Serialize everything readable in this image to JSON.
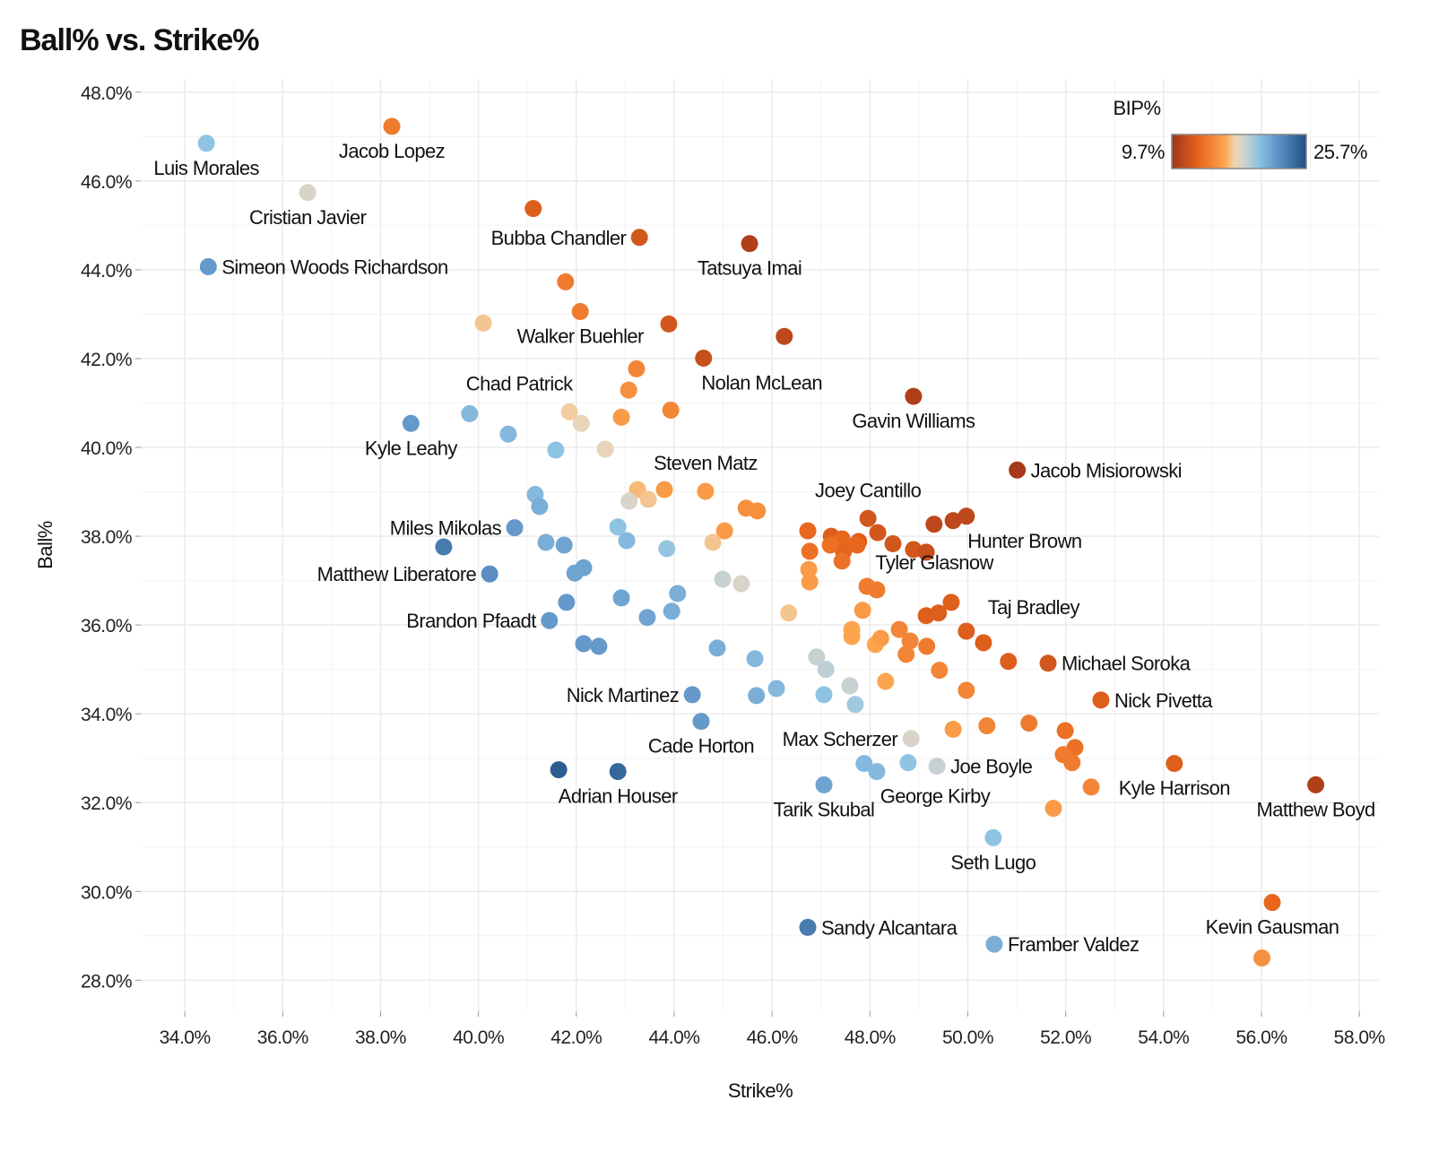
{
  "chart_data": {
    "type": "scatter",
    "title": "Ball% vs. Strike%",
    "xlabel": "Strike%",
    "ylabel": "Ball%",
    "xlim": [
      33.1,
      58.4
    ],
    "ylim": [
      27.3,
      48.3
    ],
    "xticks": [
      34,
      36,
      38,
      40,
      42,
      44,
      46,
      48,
      50,
      52,
      54,
      56,
      58
    ],
    "yticks": [
      28,
      30,
      32,
      34,
      36,
      38,
      40,
      42,
      44,
      46,
      48
    ],
    "xtick_labels": [
      "34.0%",
      "36.0%",
      "38.0%",
      "40.0%",
      "42.0%",
      "44.0%",
      "46.0%",
      "48.0%",
      "50.0%",
      "52.0%",
      "54.0%",
      "56.0%",
      "58.0%"
    ],
    "ytick_labels": [
      "28.0%",
      "30.0%",
      "32.0%",
      "34.0%",
      "36.0%",
      "38.0%",
      "40.0%",
      "42.0%",
      "44.0%",
      "46.0%",
      "48.0%"
    ],
    "grid": true,
    "legend": {
      "title": "BIP%",
      "min_label": "9.7%",
      "max_label": "25.7%",
      "min": 9.7,
      "max": 25.7,
      "placement": "top-right"
    },
    "color_scale": [
      {
        "v": 9.7,
        "c": "#9e3419"
      },
      {
        "v": 13.0,
        "c": "#e9661d"
      },
      {
        "v": 16.0,
        "c": "#fca54f"
      },
      {
        "v": 17.2,
        "c": "#f0d5b0"
      },
      {
        "v": 18.3,
        "c": "#cfd3d0"
      },
      {
        "v": 20.0,
        "c": "#8ec3e3"
      },
      {
        "v": 22.3,
        "c": "#5f93c6"
      },
      {
        "v": 25.7,
        "c": "#1f4f82"
      }
    ],
    "points": [
      {
        "x": 34.44,
        "y": 46.85,
        "bip": 20,
        "label": "Luis Morales",
        "pos": "below"
      },
      {
        "x": 38.23,
        "y": 47.23,
        "bip": 14,
        "label": "Jacob Lopez",
        "pos": "below"
      },
      {
        "x": 36.51,
        "y": 45.74,
        "bip": 18,
        "label": "Cristian Javier",
        "pos": "below"
      },
      {
        "x": 41.12,
        "y": 45.38,
        "bip": 12.5
      },
      {
        "x": 43.29,
        "y": 44.73,
        "bip": 12,
        "label": "Bubba Chandler",
        "pos": "left"
      },
      {
        "x": 45.54,
        "y": 44.59,
        "bip": 10.5,
        "label": "Tatsuya Imai",
        "pos": "below"
      },
      {
        "x": 34.48,
        "y": 44.07,
        "bip": 22,
        "label": "Simeon Woods Richardson",
        "pos": "right"
      },
      {
        "x": 41.78,
        "y": 43.73,
        "bip": 14
      },
      {
        "x": 42.08,
        "y": 43.06,
        "bip": 14,
        "label": "Walker Buehler",
        "pos": "below"
      },
      {
        "x": 40.1,
        "y": 42.8,
        "bip": 16.8
      },
      {
        "x": 43.89,
        "y": 42.78,
        "bip": 12
      },
      {
        "x": 46.25,
        "y": 42.5,
        "bip": 11
      },
      {
        "x": 44.6,
        "y": 42.01,
        "bip": 11.5,
        "label": "Nolan McLean",
        "pos": "belowright"
      },
      {
        "x": 43.23,
        "y": 41.77,
        "bip": 14.5
      },
      {
        "x": 43.07,
        "y": 41.29,
        "bip": 15
      },
      {
        "x": 43.93,
        "y": 40.84,
        "bip": 14.5
      },
      {
        "x": 41.86,
        "y": 40.8,
        "bip": 17,
        "label": "Chad Patrick",
        "pos": "aboveleft"
      },
      {
        "x": 42.1,
        "y": 40.54,
        "bip": 17.5
      },
      {
        "x": 42.92,
        "y": 40.68,
        "bip": 15.5
      },
      {
        "x": 38.62,
        "y": 40.54,
        "bip": 22,
        "label": "Kyle Leahy",
        "pos": "below"
      },
      {
        "x": 39.82,
        "y": 40.76,
        "bip": 20.5
      },
      {
        "x": 40.61,
        "y": 40.3,
        "bip": 20.5
      },
      {
        "x": 41.58,
        "y": 39.94,
        "bip": 20
      },
      {
        "x": 42.59,
        "y": 39.96,
        "bip": 17.5
      },
      {
        "x": 48.89,
        "y": 41.15,
        "bip": 10.5,
        "label": "Gavin Williams",
        "pos": "below"
      },
      {
        "x": 51.01,
        "y": 39.49,
        "bip": 10,
        "label": "Jacob Misiorowski",
        "pos": "right"
      },
      {
        "x": 41.16,
        "y": 38.94,
        "bip": 20.5
      },
      {
        "x": 41.25,
        "y": 38.67,
        "bip": 21
      },
      {
        "x": 43.25,
        "y": 39.05,
        "bip": 16.5
      },
      {
        "x": 43.08,
        "y": 38.79,
        "bip": 18
      },
      {
        "x": 43.47,
        "y": 38.83,
        "bip": 16.8
      },
      {
        "x": 43.8,
        "y": 39.05,
        "bip": 15.5
      },
      {
        "x": 44.64,
        "y": 39.01,
        "bip": 15.5,
        "label": "Steven Matz",
        "pos": "above"
      },
      {
        "x": 45.47,
        "y": 38.63,
        "bip": 15
      },
      {
        "x": 45.7,
        "y": 38.57,
        "bip": 15
      },
      {
        "x": 40.74,
        "y": 38.19,
        "bip": 22,
        "label": "Miles Mikolas",
        "pos": "left"
      },
      {
        "x": 42.85,
        "y": 38.21,
        "bip": 20
      },
      {
        "x": 41.38,
        "y": 37.86,
        "bip": 21
      },
      {
        "x": 45.03,
        "y": 38.12,
        "bip": 15.5
      },
      {
        "x": 47.96,
        "y": 38.4,
        "bip": 12,
        "label": "Joey Cantillo",
        "pos": "above"
      },
      {
        "x": 46.73,
        "y": 38.12,
        "bip": 13
      },
      {
        "x": 47.21,
        "y": 38.0,
        "bip": 12.5
      },
      {
        "x": 47.43,
        "y": 37.94,
        "bip": 13
      },
      {
        "x": 47.77,
        "y": 37.88,
        "bip": 12.5
      },
      {
        "x": 48.16,
        "y": 38.08,
        "bip": 12
      },
      {
        "x": 48.47,
        "y": 37.83,
        "bip": 12
      },
      {
        "x": 47.46,
        "y": 37.66,
        "bip": 12.8
      },
      {
        "x": 46.77,
        "y": 37.66,
        "bip": 13.5
      },
      {
        "x": 49.31,
        "y": 38.27,
        "bip": 11
      },
      {
        "x": 49.7,
        "y": 38.35,
        "bip": 11
      },
      {
        "x": 49.97,
        "y": 38.45,
        "bip": 11,
        "label": "Hunter Brown",
        "pos": "belowright"
      },
      {
        "x": 48.89,
        "y": 37.7,
        "bip": 12
      },
      {
        "x": 49.15,
        "y": 37.64,
        "bip": 11.5
      },
      {
        "x": 39.29,
        "y": 37.76,
        "bip": 23.5
      },
      {
        "x": 41.75,
        "y": 37.8,
        "bip": 21.5
      },
      {
        "x": 43.03,
        "y": 37.9,
        "bip": 20.5
      },
      {
        "x": 43.85,
        "y": 37.72,
        "bip": 19.8
      },
      {
        "x": 44.79,
        "y": 37.86,
        "bip": 16.8
      },
      {
        "x": 47.19,
        "y": 37.8,
        "bip": 13.5
      },
      {
        "x": 47.74,
        "y": 37.8,
        "bip": 13
      },
      {
        "x": 47.43,
        "y": 37.44,
        "bip": 13.5
      },
      {
        "x": 42.15,
        "y": 37.29,
        "bip": 21.5
      },
      {
        "x": 41.97,
        "y": 37.17,
        "bip": 21.5
      },
      {
        "x": 40.23,
        "y": 37.15,
        "bip": 22.5,
        "label": "Matthew Liberatore",
        "pos": "left"
      },
      {
        "x": 46.75,
        "y": 37.25,
        "bip": 15.5
      },
      {
        "x": 46.77,
        "y": 36.97,
        "bip": 15.5
      },
      {
        "x": 44.99,
        "y": 37.03,
        "bip": 18.5
      },
      {
        "x": 45.37,
        "y": 36.93,
        "bip": 18
      },
      {
        "x": 47.94,
        "y": 36.87,
        "bip": 14,
        "label": "Tyler Glasnow",
        "pos": "aboveright"
      },
      {
        "x": 48.14,
        "y": 36.79,
        "bip": 14
      },
      {
        "x": 41.8,
        "y": 36.51,
        "bip": 22
      },
      {
        "x": 42.92,
        "y": 36.61,
        "bip": 21.5
      },
      {
        "x": 44.07,
        "y": 36.71,
        "bip": 21
      },
      {
        "x": 41.45,
        "y": 36.1,
        "bip": 22,
        "label": "Brandon Pfaadt",
        "pos": "left"
      },
      {
        "x": 43.45,
        "y": 36.17,
        "bip": 21.5
      },
      {
        "x": 43.95,
        "y": 36.31,
        "bip": 21
      },
      {
        "x": 46.34,
        "y": 36.27,
        "bip": 16.8
      },
      {
        "x": 47.85,
        "y": 36.33,
        "bip": 15.5
      },
      {
        "x": 47.63,
        "y": 35.9,
        "bip": 16
      },
      {
        "x": 47.63,
        "y": 35.74,
        "bip": 16
      },
      {
        "x": 48.11,
        "y": 35.56,
        "bip": 16
      },
      {
        "x": 48.22,
        "y": 35.7,
        "bip": 15.5
      },
      {
        "x": 48.6,
        "y": 35.9,
        "bip": 14.5
      },
      {
        "x": 48.82,
        "y": 35.64,
        "bip": 14.5
      },
      {
        "x": 49.16,
        "y": 35.52,
        "bip": 14
      },
      {
        "x": 48.74,
        "y": 35.34,
        "bip": 14.5
      },
      {
        "x": 49.15,
        "y": 36.21,
        "bip": 12.5
      },
      {
        "x": 49.4,
        "y": 36.27,
        "bip": 12.5
      },
      {
        "x": 49.66,
        "y": 36.51,
        "bip": 12.5
      },
      {
        "x": 49.97,
        "y": 35.86,
        "bip": 12.5,
        "label": "Taj Bradley",
        "pos": "aboveright"
      },
      {
        "x": 50.32,
        "y": 35.6,
        "bip": 12.5
      },
      {
        "x": 42.15,
        "y": 35.58,
        "bip": 22
      },
      {
        "x": 42.46,
        "y": 35.52,
        "bip": 22
      },
      {
        "x": 44.88,
        "y": 35.48,
        "bip": 21
      },
      {
        "x": 45.65,
        "y": 35.24,
        "bip": 20.5
      },
      {
        "x": 46.91,
        "y": 35.28,
        "bip": 18.5
      },
      {
        "x": 47.1,
        "y": 35.0,
        "bip": 18.8
      },
      {
        "x": 49.42,
        "y": 34.98,
        "bip": 14.5
      },
      {
        "x": 50.83,
        "y": 35.18,
        "bip": 12.5
      },
      {
        "x": 51.64,
        "y": 35.14,
        "bip": 12,
        "label": "Michael Soroka",
        "pos": "right"
      },
      {
        "x": 44.37,
        "y": 34.43,
        "bip": 22,
        "label": "Nick Martinez",
        "pos": "left"
      },
      {
        "x": 45.68,
        "y": 34.41,
        "bip": 21
      },
      {
        "x": 46.09,
        "y": 34.57,
        "bip": 20.5
      },
      {
        "x": 47.06,
        "y": 34.43,
        "bip": 20
      },
      {
        "x": 47.59,
        "y": 34.63,
        "bip": 18.5
      },
      {
        "x": 47.7,
        "y": 34.21,
        "bip": 19.5
      },
      {
        "x": 48.32,
        "y": 34.73,
        "bip": 16
      },
      {
        "x": 49.97,
        "y": 34.53,
        "bip": 14.5
      },
      {
        "x": 52.72,
        "y": 34.31,
        "bip": 12.5,
        "label": "Nick Pivetta",
        "pos": "right"
      },
      {
        "x": 44.55,
        "y": 33.83,
        "bip": 22,
        "label": "Cade Horton",
        "pos": "below"
      },
      {
        "x": 48.84,
        "y": 33.44,
        "bip": 18,
        "label": "Max Scherzer",
        "pos": "left"
      },
      {
        "x": 49.7,
        "y": 33.65,
        "bip": 15.5
      },
      {
        "x": 50.39,
        "y": 33.73,
        "bip": 14.5
      },
      {
        "x": 51.25,
        "y": 33.79,
        "bip": 14
      },
      {
        "x": 51.99,
        "y": 33.62,
        "bip": 13.5
      },
      {
        "x": 52.19,
        "y": 33.24,
        "bip": 13.5
      },
      {
        "x": 51.95,
        "y": 33.08,
        "bip": 14
      },
      {
        "x": 52.13,
        "y": 32.9,
        "bip": 14
      },
      {
        "x": 41.64,
        "y": 32.74,
        "bip": 25
      },
      {
        "x": 42.85,
        "y": 32.7,
        "bip": 24.5,
        "label": "Adrian Houser",
        "pos": "below"
      },
      {
        "x": 47.88,
        "y": 32.88,
        "bip": 20.5
      },
      {
        "x": 48.14,
        "y": 32.7,
        "bip": 20.5,
        "label": "George Kirby",
        "pos": "belowright"
      },
      {
        "x": 48.78,
        "y": 32.9,
        "bip": 20
      },
      {
        "x": 49.37,
        "y": 32.82,
        "bip": 18.5,
        "label": "Joe Boyle",
        "pos": "right"
      },
      {
        "x": 47.06,
        "y": 32.4,
        "bip": 21.5,
        "label": "Tarik Skubal",
        "pos": "below"
      },
      {
        "x": 52.52,
        "y": 32.35,
        "bip": 14.5
      },
      {
        "x": 54.22,
        "y": 32.88,
        "bip": 12.5,
        "label": "Kyle Harrison",
        "pos": "below"
      },
      {
        "x": 57.11,
        "y": 32.4,
        "bip": 10.5,
        "label": "Matthew Boyd",
        "pos": "below"
      },
      {
        "x": 51.75,
        "y": 31.87,
        "bip": 15.5
      },
      {
        "x": 50.52,
        "y": 31.21,
        "bip": 20,
        "label": "Seth Lugo",
        "pos": "below"
      },
      {
        "x": 56.22,
        "y": 29.75,
        "bip": 13,
        "label": "Kevin Gausman",
        "pos": "below"
      },
      {
        "x": 56.01,
        "y": 28.5,
        "bip": 15
      },
      {
        "x": 46.73,
        "y": 29.19,
        "bip": 23.5,
        "label": "Sandy Alcantara",
        "pos": "right"
      },
      {
        "x": 50.54,
        "y": 28.81,
        "bip": 21,
        "label": "Framber Valdez",
        "pos": "right"
      }
    ]
  }
}
